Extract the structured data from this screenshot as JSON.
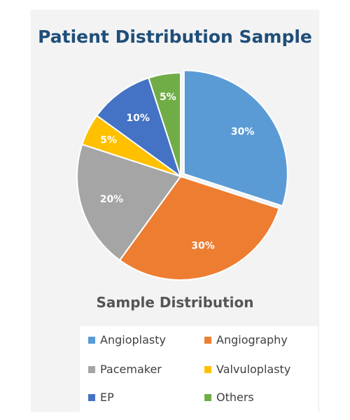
{
  "chart_data": {
    "type": "pie",
    "title": "Patient Distribution  Sample",
    "subtitle": "Sample Distribution",
    "legend_position": "bottom",
    "slices": [
      {
        "name": "Angioplasty",
        "value": 30,
        "label": "30%",
        "color": "#5b9bd5"
      },
      {
        "name": "Angiography",
        "value": 30,
        "label": "30%",
        "color": "#ed7d31"
      },
      {
        "name": "Pacemaker",
        "value": 20,
        "label": "20%",
        "color": "#a5a5a5"
      },
      {
        "name": "Valvuloplasty",
        "value": 5,
        "label": "5%",
        "color": "#ffc000"
      },
      {
        "name": "EP",
        "value": 10,
        "label": "10%",
        "color": "#4472c4"
      },
      {
        "name": "Others",
        "value": 5,
        "label": "5%",
        "color": "#70ad47"
      }
    ]
  }
}
